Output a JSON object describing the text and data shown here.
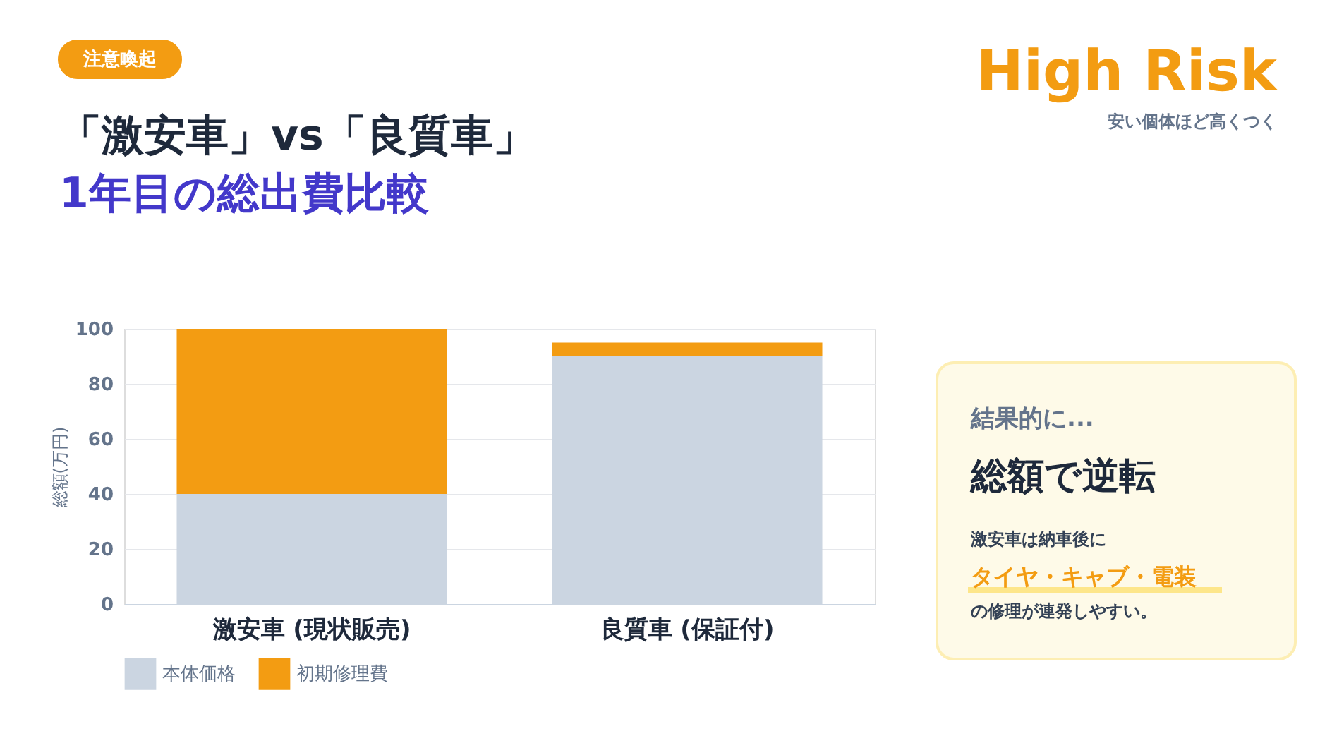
{
  "chart_data": {
    "type": "bar",
    "title": "「激安車」vs「良質車」",
    "subtitle": "1年目の総出費比較",
    "ylabel": "総額(万円)",
    "categories": [
      "激安車 (現状販売)",
      "良質車 (保証付)"
    ],
    "series": [
      {
        "name": "本体価格",
        "color": "#cbd5e1",
        "values": [
          40,
          90
        ]
      },
      {
        "name": "初期修理費",
        "color": "#f39c12",
        "values": [
          60,
          5
        ]
      }
    ],
    "stacked": true,
    "ylim": [
      0,
      100
    ],
    "yticks": [
      0,
      20,
      40,
      60,
      80,
      100
    ],
    "grid": "y",
    "legend": "bottom",
    "annotations": [
      "注意喚起",
      "High Risk",
      "安い個体ほど高くつく",
      "結果的に...",
      "総額で逆転",
      "激安車は納車後に",
      "タイヤ・キャブ・電装",
      "の修理が連発しやすい。"
    ]
  }
}
